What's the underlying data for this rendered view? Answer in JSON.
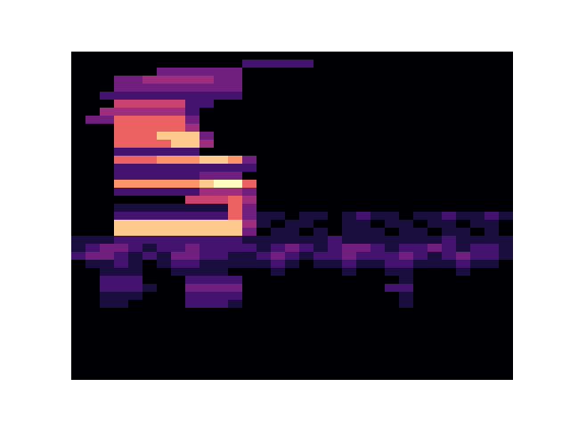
{
  "chart_data": {
    "type": "heatmap",
    "tick_labels": false,
    "cells": [
      [
        0,
        0,
        0,
        0,
        0,
        0,
        0,
        0,
        0,
        0,
        0,
        0,
        0,
        0,
        0,
        0,
        0,
        0,
        0,
        0,
        0,
        0,
        0,
        0,
        0,
        0,
        0,
        0,
        0,
        0,
        0
      ],
      [
        0,
        0,
        0,
        0,
        0,
        0,
        0,
        0,
        0,
        0,
        0,
        0,
        2,
        2,
        2,
        2,
        2,
        0,
        0,
        0,
        0,
        0,
        0,
        0,
        0,
        0,
        0,
        0,
        0,
        0,
        0
      ],
      [
        0,
        0,
        0,
        0,
        0,
        0,
        3,
        3,
        3,
        3,
        3,
        3,
        0,
        0,
        0,
        0,
        0,
        0,
        0,
        0,
        0,
        0,
        0,
        0,
        0,
        0,
        0,
        0,
        0,
        0,
        0
      ],
      [
        0,
        0,
        0,
        3,
        3,
        4,
        4,
        4,
        4,
        4,
        3,
        3,
        0,
        0,
        0,
        0,
        0,
        0,
        0,
        0,
        0,
        0,
        0,
        0,
        0,
        0,
        0,
        0,
        0,
        0,
        0
      ],
      [
        0,
        0,
        0,
        3,
        3,
        3,
        3,
        3,
        3,
        3,
        3,
        3,
        0,
        0,
        0,
        0,
        0,
        0,
        0,
        0,
        0,
        0,
        0,
        0,
        0,
        0,
        0,
        0,
        0,
        0,
        0
      ],
      [
        0,
        0,
        2,
        2,
        2,
        2,
        2,
        2,
        2,
        2,
        2,
        2,
        0,
        0,
        0,
        0,
        0,
        0,
        0,
        0,
        0,
        0,
        0,
        0,
        0,
        0,
        0,
        0,
        0,
        0,
        0
      ],
      [
        0,
        0,
        0,
        5,
        5,
        5,
        5,
        5,
        2,
        2,
        0,
        0,
        0,
        0,
        0,
        0,
        0,
        0,
        0,
        0,
        0,
        0,
        0,
        0,
        0,
        0,
        0,
        0,
        0,
        0,
        0
      ],
      [
        0,
        0,
        4,
        4,
        4,
        4,
        4,
        4,
        2,
        0,
        0,
        0,
        0,
        0,
        0,
        0,
        0,
        0,
        0,
        0,
        0,
        0,
        0,
        0,
        0,
        0,
        0,
        0,
        0,
        0,
        0
      ],
      [
        0,
        3,
        3,
        6,
        6,
        6,
        6,
        6,
        3,
        0,
        0,
        0,
        0,
        0,
        0,
        0,
        0,
        0,
        0,
        0,
        0,
        0,
        0,
        0,
        0,
        0,
        0,
        0,
        0,
        0,
        0
      ],
      [
        0,
        0,
        0,
        6,
        6,
        6,
        6,
        6,
        4,
        0,
        0,
        0,
        0,
        0,
        0,
        0,
        0,
        0,
        0,
        0,
        0,
        0,
        0,
        0,
        0,
        0,
        0,
        0,
        0,
        0,
        0
      ],
      [
        0,
        0,
        0,
        6,
        6,
        6,
        8,
        8,
        8,
        3,
        0,
        0,
        0,
        0,
        0,
        0,
        0,
        0,
        0,
        0,
        0,
        0,
        0,
        0,
        0,
        0,
        0,
        0,
        0,
        0,
        0
      ],
      [
        0,
        0,
        0,
        6,
        6,
        6,
        6,
        8,
        8,
        4,
        0,
        0,
        0,
        0,
        0,
        0,
        0,
        0,
        0,
        0,
        0,
        0,
        0,
        0,
        0,
        0,
        0,
        0,
        0,
        0,
        0
      ],
      [
        0,
        0,
        0,
        2,
        2,
        2,
        2,
        2,
        2,
        0,
        0,
        0,
        0,
        0,
        0,
        0,
        0,
        0,
        0,
        0,
        0,
        0,
        0,
        0,
        0,
        0,
        0,
        0,
        0,
        0,
        0
      ],
      [
        0,
        0,
        0,
        6,
        6,
        6,
        7,
        7,
        7,
        8,
        8,
        7,
        3,
        0,
        0,
        0,
        0,
        0,
        0,
        0,
        0,
        0,
        0,
        0,
        0,
        0,
        0,
        0,
        0,
        0,
        0
      ],
      [
        0,
        0,
        0,
        2,
        2,
        2,
        2,
        2,
        2,
        2,
        2,
        2,
        2,
        0,
        0,
        0,
        0,
        0,
        0,
        0,
        0,
        0,
        0,
        0,
        0,
        0,
        0,
        0,
        0,
        0,
        0
      ],
      [
        0,
        0,
        0,
        2,
        2,
        2,
        2,
        2,
        2,
        3,
        3,
        3,
        0,
        0,
        0,
        0,
        0,
        0,
        0,
        0,
        0,
        0,
        0,
        0,
        0,
        0,
        0,
        0,
        0,
        0,
        0
      ],
      [
        0,
        0,
        0,
        7,
        7,
        7,
        7,
        7,
        7,
        8,
        9,
        9,
        6,
        0,
        0,
        0,
        0,
        0,
        0,
        0,
        0,
        0,
        0,
        0,
        0,
        0,
        0,
        0,
        0,
        0,
        0
      ],
      [
        0,
        0,
        0,
        2,
        2,
        2,
        2,
        2,
        2,
        4,
        4,
        4,
        3,
        0,
        0,
        0,
        0,
        0,
        0,
        0,
        0,
        0,
        0,
        0,
        0,
        0,
        0,
        0,
        0,
        0,
        0
      ],
      [
        0,
        0,
        0,
        0,
        0,
        0,
        0,
        0,
        5,
        5,
        5,
        6,
        4,
        0,
        0,
        0,
        0,
        0,
        0,
        0,
        0,
        0,
        0,
        0,
        0,
        0,
        0,
        0,
        0,
        0,
        0
      ],
      [
        0,
        0,
        0,
        1,
        1,
        1,
        1,
        1,
        1,
        1,
        1,
        6,
        3,
        0,
        0,
        0,
        0,
        0,
        0,
        0,
        0,
        0,
        0,
        0,
        0,
        0,
        0,
        0,
        0,
        0,
        0
      ],
      [
        0,
        0,
        0,
        2,
        2,
        2,
        2,
        2,
        2,
        2,
        2,
        6,
        3,
        1,
        1,
        0,
        1,
        1,
        0,
        1,
        2,
        1,
        1,
        0,
        1,
        1,
        2,
        1,
        1,
        2,
        1
      ],
      [
        0,
        0,
        0,
        8,
        8,
        8,
        8,
        8,
        8,
        8,
        8,
        8,
        4,
        1,
        0,
        1,
        1,
        0,
        0,
        1,
        1,
        0,
        1,
        1,
        0,
        1,
        1,
        0,
        1,
        1,
        0
      ],
      [
        0,
        0,
        0,
        8,
        8,
        8,
        8,
        8,
        8,
        8,
        8,
        8,
        3,
        0,
        1,
        1,
        0,
        1,
        0,
        1,
        1,
        1,
        0,
        1,
        1,
        0,
        1,
        1,
        0,
        1,
        0
      ],
      [
        1,
        1,
        1,
        2,
        2,
        2,
        2,
        2,
        2,
        2,
        2,
        2,
        1,
        1,
        1,
        1,
        1,
        1,
        2,
        1,
        1,
        1,
        1,
        1,
        1,
        1,
        2,
        1,
        1,
        1,
        1
      ],
      [
        1,
        2,
        3,
        3,
        2,
        1,
        2,
        2,
        3,
        2,
        2,
        2,
        2,
        1,
        2,
        3,
        2,
        1,
        2,
        3,
        3,
        2,
        1,
        2,
        2,
        3,
        2,
        1,
        2,
        2,
        1
      ],
      [
        2,
        3,
        3,
        2,
        1,
        2,
        1,
        3,
        3,
        2,
        2,
        1,
        1,
        2,
        3,
        2,
        1,
        2,
        2,
        3,
        2,
        2,
        2,
        3,
        2,
        1,
        2,
        3,
        2,
        2,
        1
      ],
      [
        0,
        1,
        1,
        2,
        1,
        0,
        1,
        2,
        2,
        1,
        1,
        1,
        1,
        1,
        2,
        1,
        0,
        1,
        1,
        2,
        1,
        1,
        2,
        2,
        1,
        1,
        1,
        2,
        1,
        1,
        0
      ],
      [
        0,
        0,
        1,
        1,
        1,
        0,
        0,
        1,
        1,
        1,
        1,
        0,
        0,
        0,
        1,
        0,
        0,
        0,
        0,
        1,
        0,
        0,
        1,
        1,
        0,
        0,
        0,
        1,
        0,
        0,
        0
      ],
      [
        0,
        0,
        2,
        2,
        2,
        0,
        0,
        0,
        2,
        2,
        2,
        2,
        0,
        0,
        0,
        0,
        0,
        0,
        0,
        0,
        0,
        0,
        0,
        1,
        0,
        0,
        0,
        0,
        0,
        0,
        0
      ],
      [
        0,
        0,
        2,
        2,
        2,
        1,
        0,
        0,
        3,
        3,
        3,
        3,
        0,
        0,
        0,
        0,
        0,
        0,
        0,
        0,
        0,
        0,
        2,
        2,
        0,
        0,
        0,
        0,
        0,
        0,
        0
      ],
      [
        0,
        0,
        1,
        1,
        1,
        0,
        0,
        0,
        2,
        2,
        2,
        2,
        0,
        0,
        0,
        0,
        0,
        0,
        0,
        0,
        0,
        0,
        0,
        1,
        0,
        0,
        0,
        0,
        0,
        0,
        0
      ],
      [
        0,
        0,
        1,
        1,
        0,
        0,
        0,
        0,
        2,
        2,
        2,
        1,
        0,
        0,
        0,
        0,
        0,
        0,
        0,
        0,
        0,
        0,
        0,
        1,
        0,
        0,
        0,
        0,
        0,
        0,
        0
      ],
      [
        0,
        0,
        0,
        0,
        0,
        0,
        0,
        0,
        0,
        0,
        0,
        0,
        0,
        0,
        0,
        0,
        0,
        0,
        0,
        0,
        0,
        0,
        0,
        0,
        0,
        0,
        0,
        0,
        0,
        0,
        0
      ],
      [
        0,
        0,
        0,
        0,
        0,
        0,
        0,
        0,
        0,
        0,
        0,
        0,
        0,
        0,
        0,
        0,
        0,
        0,
        0,
        0,
        0,
        0,
        0,
        0,
        0,
        0,
        0,
        0,
        0,
        0,
        0
      ],
      [
        0,
        0,
        0,
        0,
        0,
        0,
        0,
        0,
        0,
        0,
        0,
        0,
        0,
        0,
        0,
        0,
        0,
        0,
        0,
        0,
        0,
        0,
        0,
        0,
        0,
        0,
        0,
        0,
        0,
        0,
        0
      ],
      [
        0,
        0,
        0,
        0,
        0,
        0,
        0,
        0,
        0,
        0,
        0,
        0,
        0,
        0,
        0,
        0,
        0,
        0,
        0,
        0,
        0,
        0,
        0,
        0,
        0,
        0,
        0,
        0,
        0,
        0,
        0
      ],
      [
        0,
        0,
        0,
        0,
        0,
        0,
        0,
        0,
        0,
        0,
        0,
        0,
        0,
        0,
        0,
        0,
        0,
        0,
        0,
        0,
        0,
        0,
        0,
        0,
        0,
        0,
        0,
        0,
        0,
        0,
        0
      ],
      [
        0,
        0,
        0,
        0,
        0,
        0,
        0,
        0,
        0,
        0,
        0,
        0,
        0,
        0,
        0,
        0,
        0,
        0,
        0,
        0,
        0,
        0,
        0,
        0,
        0,
        0,
        0,
        0,
        0,
        0,
        0
      ],
      [
        0,
        0,
        0,
        0,
        0,
        0,
        0,
        0,
        0,
        0,
        0,
        0,
        0,
        0,
        0,
        0,
        0,
        0,
        0,
        0,
        0,
        0,
        0,
        0,
        0,
        0,
        0,
        0,
        0,
        0,
        0
      ],
      [
        0,
        0,
        0,
        0,
        0,
        0,
        0,
        0,
        0,
        0,
        0,
        0,
        0,
        0,
        0,
        0,
        0,
        0,
        0,
        0,
        0,
        0,
        0,
        0,
        0,
        0,
        0,
        0,
        0,
        0,
        0
      ],
      [
        0,
        0,
        0,
        0,
        0,
        0,
        0,
        0,
        0,
        0,
        0,
        0,
        0,
        0,
        0,
        0,
        0,
        0,
        0,
        0,
        0,
        0,
        0,
        0,
        0,
        0,
        0,
        0,
        0,
        0,
        0
      ]
    ]
  }
}
